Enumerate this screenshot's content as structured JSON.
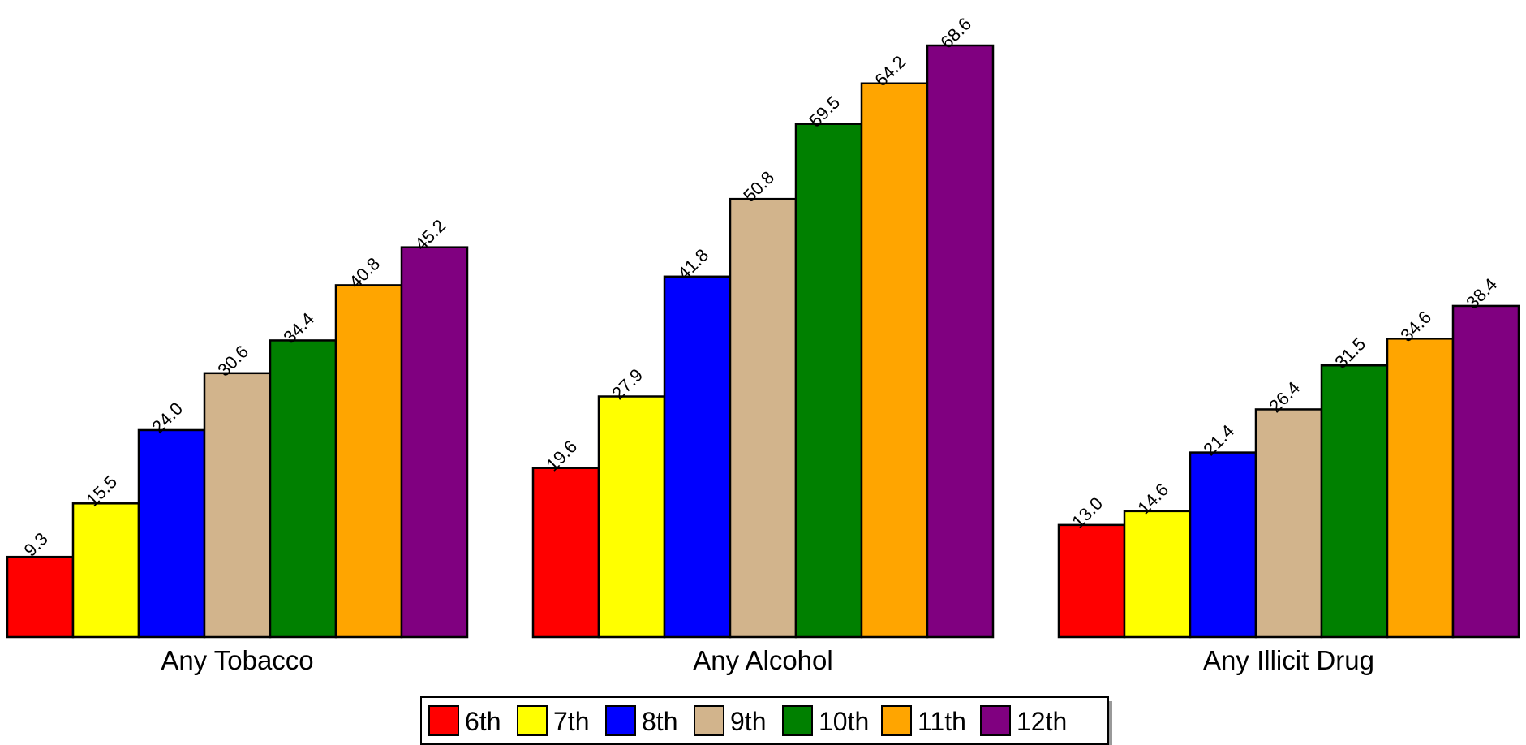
{
  "chart_data": {
    "type": "bar",
    "categories": [
      "Any Tobacco",
      "Any Alcohol",
      "Any Illicit Drug"
    ],
    "series": [
      {
        "name": "6th",
        "color": "#ff0000",
        "values": [
          9.3,
          19.6,
          13.0
        ]
      },
      {
        "name": "7th",
        "color": "#ffff00",
        "values": [
          15.5,
          27.9,
          14.6
        ]
      },
      {
        "name": "8th",
        "color": "#0000ff",
        "values": [
          24.0,
          41.8,
          21.4
        ]
      },
      {
        "name": "9th",
        "color": "#d2b48c",
        "values": [
          30.6,
          50.8,
          26.4
        ]
      },
      {
        "name": "10th",
        "color": "#008000",
        "values": [
          34.4,
          59.5,
          31.5
        ]
      },
      {
        "name": "11th",
        "color": "#ffa500",
        "values": [
          40.8,
          64.2,
          34.6
        ]
      },
      {
        "name": "12th",
        "color": "#800080",
        "values": [
          45.2,
          68.6,
          38.4
        ]
      }
    ],
    "title": "",
    "xlabel": "",
    "ylabel": "",
    "ylim": [
      0,
      68.6
    ],
    "grid": false,
    "legend_position": "bottom-center",
    "data_labels": true,
    "value_format": "1 decimal"
  }
}
